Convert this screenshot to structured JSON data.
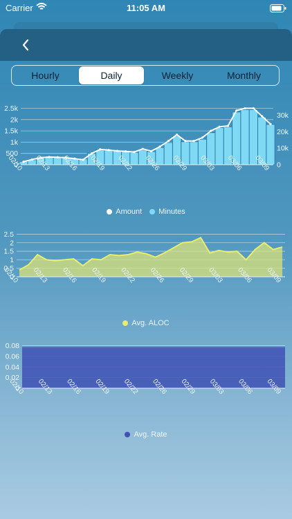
{
  "status": {
    "carrier": "Carrier",
    "time": "11:05 AM"
  },
  "segments": [
    {
      "label": "Hourly",
      "active": false
    },
    {
      "label": "Daily",
      "active": true
    },
    {
      "label": "Weekly",
      "active": false
    },
    {
      "label": "Monthly",
      "active": false
    }
  ],
  "colors": {
    "amount": "#ffffff",
    "minutes": "#7fd9f5",
    "aloc": "#e8ec6f",
    "rate": "#3f51b5"
  },
  "chart_data": [
    {
      "type": "bar",
      "x_ticks": [
        "02/10",
        "02/13",
        "02/16",
        "02/19",
        "02/22",
        "02/26",
        "02/29",
        "03/03",
        "03/06",
        "03/09"
      ],
      "y_ticks_left": [
        "0",
        "500",
        "1k",
        "1.5k",
        "2k",
        "2.5k"
      ],
      "y_ticks_right": [
        "0",
        "10k",
        "20k",
        "30k"
      ],
      "ylim_left": [
        0,
        2700
      ],
      "ylim_right": [
        0,
        37000
      ],
      "series": [
        {
          "name": "Amount",
          "type": "line",
          "axis": "left",
          "values": [
            130,
            230,
            310,
            340,
            330,
            310,
            270,
            220,
            500,
            680,
            650,
            610,
            590,
            560,
            700,
            600,
            800,
            1050,
            1330,
            1050,
            1050,
            1200,
            1500,
            1680,
            1720,
            2400,
            2500,
            2500,
            2150,
            1800
          ]
        },
        {
          "name": "Minutes",
          "type": "bar",
          "axis": "right",
          "values": [
            2000,
            3000,
            4500,
            5000,
            5000,
            4500,
            4000,
            3500,
            7000,
            9000,
            9000,
            8500,
            8000,
            7500,
            9000,
            8000,
            10500,
            13500,
            17500,
            14000,
            14000,
            15500,
            19500,
            22500,
            23000,
            32000,
            33500,
            33500,
            29000,
            24500
          ]
        }
      ],
      "grid": true
    },
    {
      "type": "area",
      "x_ticks": [
        "02/10",
        "02/13",
        "02/16",
        "02/19",
        "02/22",
        "02/26",
        "02/29",
        "03/03",
        "03/06",
        "03/09"
      ],
      "y_ticks": [
        "0",
        "0.5",
        "1",
        "1.5",
        "2",
        "2.5"
      ],
      "ylim": [
        0,
        2.6
      ],
      "series": [
        {
          "name": "Avg. ALOC",
          "values": [
            0.4,
            0.7,
            1.3,
            1.0,
            0.95,
            1.0,
            1.05,
            0.65,
            1.05,
            1.0,
            1.3,
            1.25,
            1.3,
            1.45,
            1.35,
            1.15,
            1.4,
            1.7,
            2.0,
            2.05,
            2.3,
            1.4,
            1.55,
            1.45,
            1.5,
            1.0,
            1.6,
            2.0,
            1.6,
            1.75
          ]
        }
      ],
      "grid": true
    },
    {
      "type": "area",
      "x_ticks": [
        "02/10",
        "02/13",
        "02/16",
        "02/19",
        "02/22",
        "02/26",
        "02/29",
        "03/03",
        "03/06",
        "03/09"
      ],
      "y_ticks": [
        "0",
        "0.02",
        "0.04",
        "0.06",
        "0.08"
      ],
      "ylim": [
        0,
        0.082
      ],
      "series": [
        {
          "name": "Avg. Rate",
          "values": [
            0.077,
            0.077,
            0.077,
            0.077,
            0.077,
            0.077,
            0.077,
            0.077,
            0.077,
            0.077,
            0.077,
            0.077,
            0.077,
            0.077,
            0.077,
            0.077,
            0.077,
            0.077,
            0.077,
            0.077,
            0.077,
            0.077,
            0.077,
            0.077,
            0.077,
            0.077,
            0.077,
            0.077,
            0.077,
            0.077
          ]
        }
      ],
      "grid": true
    }
  ]
}
